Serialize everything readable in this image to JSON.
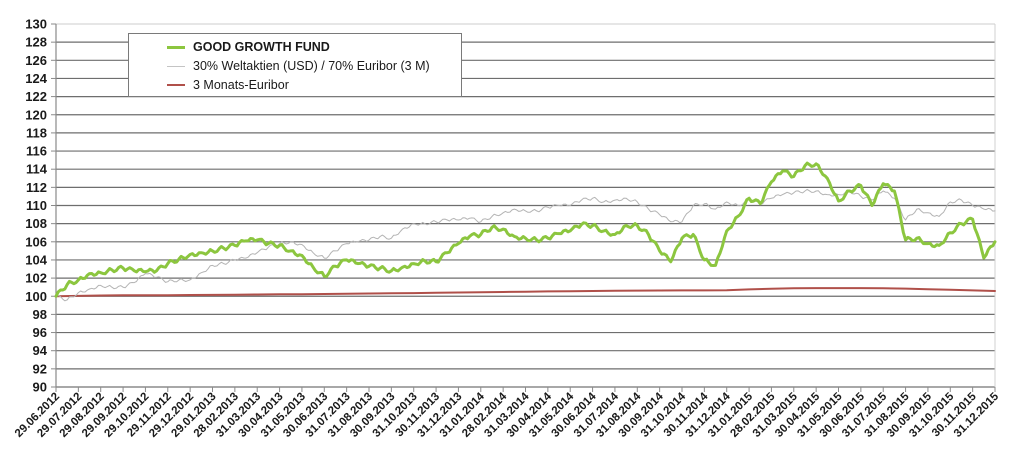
{
  "chart_data": {
    "type": "line",
    "title": "",
    "xlabel": "",
    "ylabel": "",
    "ylim": [
      90,
      130
    ],
    "yticks": [
      90,
      92,
      94,
      96,
      98,
      100,
      102,
      104,
      106,
      108,
      110,
      112,
      114,
      116,
      118,
      120,
      122,
      124,
      126,
      128,
      130
    ],
    "grid": true,
    "legend_position": "top-left (inside plot)",
    "categories": [
      "29.06.2012",
      "29.07.2012",
      "29.08.2012",
      "29.09.2012",
      "29.10.2012",
      "29.11.2012",
      "29.12.2012",
      "29.01.2013",
      "28.02.2013",
      "31.03.2013",
      "30.04.2013",
      "31.05.2013",
      "30.06.2013",
      "31.07.2013",
      "31.08.2013",
      "30.09.2013",
      "31.10.2013",
      "30.11.2013",
      "31.12.2013",
      "31.01.2014",
      "28.02.2014",
      "31.03.2014",
      "30.04.2014",
      "31.05.2014",
      "30.06.2014",
      "31.07.2014",
      "31.08.2014",
      "30.09.2014",
      "31.10.2014",
      "30.11.2014",
      "31.12.2014",
      "31.01.2015",
      "28.02.2015",
      "31.03.2015",
      "30.04.2015",
      "31.05.2015",
      "30.06.2015",
      "31.07.2015",
      "31.08.2015",
      "30.09.2015",
      "31.10.2015",
      "30.11.2015",
      "31.12.2015"
    ],
    "series": [
      {
        "name": "GOOD GROWTH FUND",
        "color": "#8cc63f",
        "width": 3,
        "values": [
          100.0,
          101.8,
          102.6,
          103.1,
          102.7,
          103.6,
          104.6,
          105.0,
          105.6,
          106.2,
          105.6,
          104.5,
          102.2,
          104.0,
          103.3,
          102.8,
          103.6,
          103.8,
          105.8,
          106.8,
          107.4,
          106.4,
          106.4,
          107.2,
          107.8,
          106.8,
          107.8,
          105.0,
          106.4,
          104.0,
          107.2,
          110.8,
          112.6,
          113.2,
          114.6,
          110.5,
          112.2,
          112.4,
          106.2,
          105.8,
          107.0,
          108.5,
          106.0
        ],
        "half_month_values": [
          100.0,
          101.3,
          101.8,
          102.5,
          102.6,
          102.9,
          103.1,
          102.8,
          102.7,
          102.8,
          103.6,
          104.1,
          104.6,
          104.8,
          105.0,
          105.3,
          105.6,
          106.1,
          106.2,
          105.8,
          105.6,
          105.0,
          104.5,
          103.2,
          102.2,
          103.3,
          104.0,
          103.6,
          103.3,
          103.1,
          102.8,
          103.2,
          103.6,
          103.9,
          103.8,
          104.8,
          105.8,
          106.6,
          106.8,
          107.6,
          107.4,
          106.6,
          106.4,
          106.2,
          106.4,
          106.9,
          107.2,
          107.9,
          107.8,
          107.2,
          106.8,
          107.8,
          107.8,
          106.8,
          105.0,
          103.8,
          106.4,
          106.8,
          104.0,
          103.4,
          107.2,
          108.8,
          110.8,
          110.2,
          112.6,
          113.8,
          113.2,
          114.4,
          114.6,
          113.0,
          110.5,
          111.6,
          112.2,
          110.0,
          112.4,
          111.6,
          106.2,
          106.4,
          105.8,
          105.6,
          107.0,
          108.0,
          108.5,
          104.2,
          106.0
        ]
      },
      {
        "name": "30% Weltaktien (USD) / 70% Euribor (3 M)",
        "color": "#b4b4b4",
        "width": 1,
        "values": [
          100.0,
          100.4,
          101.2,
          101.0,
          102.5,
          101.6,
          101.8,
          103.4,
          104.0,
          104.8,
          105.8,
          105.7,
          104.2,
          105.8,
          106.2,
          106.4,
          108.0,
          108.2,
          108.4,
          108.2,
          109.2,
          109.4,
          109.8,
          110.0,
          110.8,
          110.6,
          110.4,
          109.0,
          108.2,
          110.2,
          110.4,
          110.6,
          110.8,
          111.4,
          111.6,
          111.2,
          111.0,
          111.6,
          108.4,
          109.2,
          110.4,
          110.0,
          109.4
        ],
        "half_month_values": [
          100.0,
          99.6,
          100.4,
          100.8,
          101.2,
          101.0,
          101.0,
          101.5,
          102.5,
          102.1,
          101.6,
          101.8,
          101.8,
          102.6,
          103.4,
          103.6,
          104.0,
          104.2,
          104.8,
          105.4,
          105.8,
          106.0,
          105.7,
          104.8,
          104.2,
          105.0,
          105.8,
          106.0,
          106.2,
          106.6,
          106.4,
          107.4,
          108.0,
          108.0,
          108.2,
          108.4,
          108.4,
          108.6,
          108.2,
          108.8,
          109.2,
          109.6,
          109.4,
          109.4,
          109.8,
          110.0,
          110.0,
          110.6,
          110.8,
          110.4,
          110.6,
          110.8,
          110.4,
          109.6,
          109.0,
          108.2,
          108.2,
          110.0,
          110.2,
          109.6,
          110.4,
          110.0,
          110.6,
          110.2,
          110.8,
          111.2,
          111.4,
          111.6,
          111.6,
          111.2,
          111.2,
          111.6,
          111.0,
          110.6,
          111.6,
          110.8,
          108.4,
          109.6,
          109.2,
          108.8,
          110.4,
          110.6,
          110.0,
          109.6,
          109.4
        ]
      },
      {
        "name": "3 Monats-Euribor",
        "color": "#b0504a",
        "width": 2,
        "values": [
          100.0,
          100.04,
          100.08,
          100.1,
          100.11,
          100.12,
          100.14,
          100.15,
          100.17,
          100.19,
          100.21,
          100.23,
          100.25,
          100.27,
          100.3,
          100.32,
          100.35,
          100.38,
          100.41,
          100.44,
          100.47,
          100.5,
          100.53,
          100.56,
          100.58,
          100.6,
          100.62,
          100.63,
          100.64,
          100.65,
          100.66,
          100.75,
          100.82,
          100.88,
          100.9,
          100.9,
          100.9,
          100.88,
          100.84,
          100.78,
          100.72,
          100.65,
          100.58
        ]
      }
    ]
  },
  "legend": {
    "items": [
      {
        "label": "GOOD GROWTH FUND",
        "color": "#8cc63f",
        "bold": true
      },
      {
        "label": "30% Weltaktien (USD) / 70% Euribor (3 M)",
        "color": "#b4b4b4",
        "bold": false
      },
      {
        "label": "3 Monats-Euribor",
        "color": "#b0504a",
        "bold": false
      }
    ]
  },
  "colors": {
    "gridline": "#6e6e6e",
    "axis": "#8a8a8a",
    "background": "#ffffff"
  }
}
